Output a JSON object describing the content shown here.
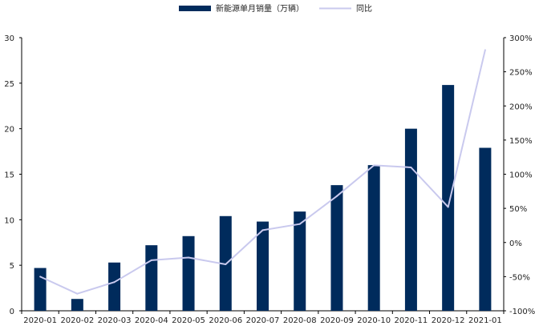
{
  "chart_data": {
    "type": "bar",
    "categories": [
      "2020-01",
      "2020-02",
      "2020-03",
      "2020-04",
      "2020-05",
      "2020-06",
      "2020-07",
      "2020-08",
      "2020-09",
      "2020-10",
      "2020-11",
      "2020-12",
      "2021-01"
    ],
    "series": [
      {
        "name": "新能源单月销量（万辆）",
        "type": "bar",
        "axis": "left",
        "color": "#002b5c",
        "values": [
          4.7,
          1.3,
          5.3,
          7.2,
          8.2,
          10.4,
          9.8,
          10.9,
          13.8,
          16.0,
          20.0,
          24.8,
          17.9
        ]
      },
      {
        "name": "同比",
        "type": "line",
        "axis": "right",
        "color": "#c9c9ee",
        "values": [
          -50,
          -75,
          -58,
          -26,
          -22,
          -32,
          18,
          27,
          68,
          113,
          110,
          52,
          282
        ]
      }
    ],
    "y_left": {
      "min": 0,
      "max": 30,
      "ticks": [
        "0",
        "5",
        "10",
        "15",
        "20",
        "25",
        "30"
      ]
    },
    "y_right": {
      "min": -100,
      "max": 300,
      "ticks": [
        "-100%",
        "-50%",
        "0%",
        "50%",
        "100%",
        "150%",
        "200%",
        "250%",
        "300%"
      ]
    },
    "legend_position": "top-center",
    "grid": false
  }
}
